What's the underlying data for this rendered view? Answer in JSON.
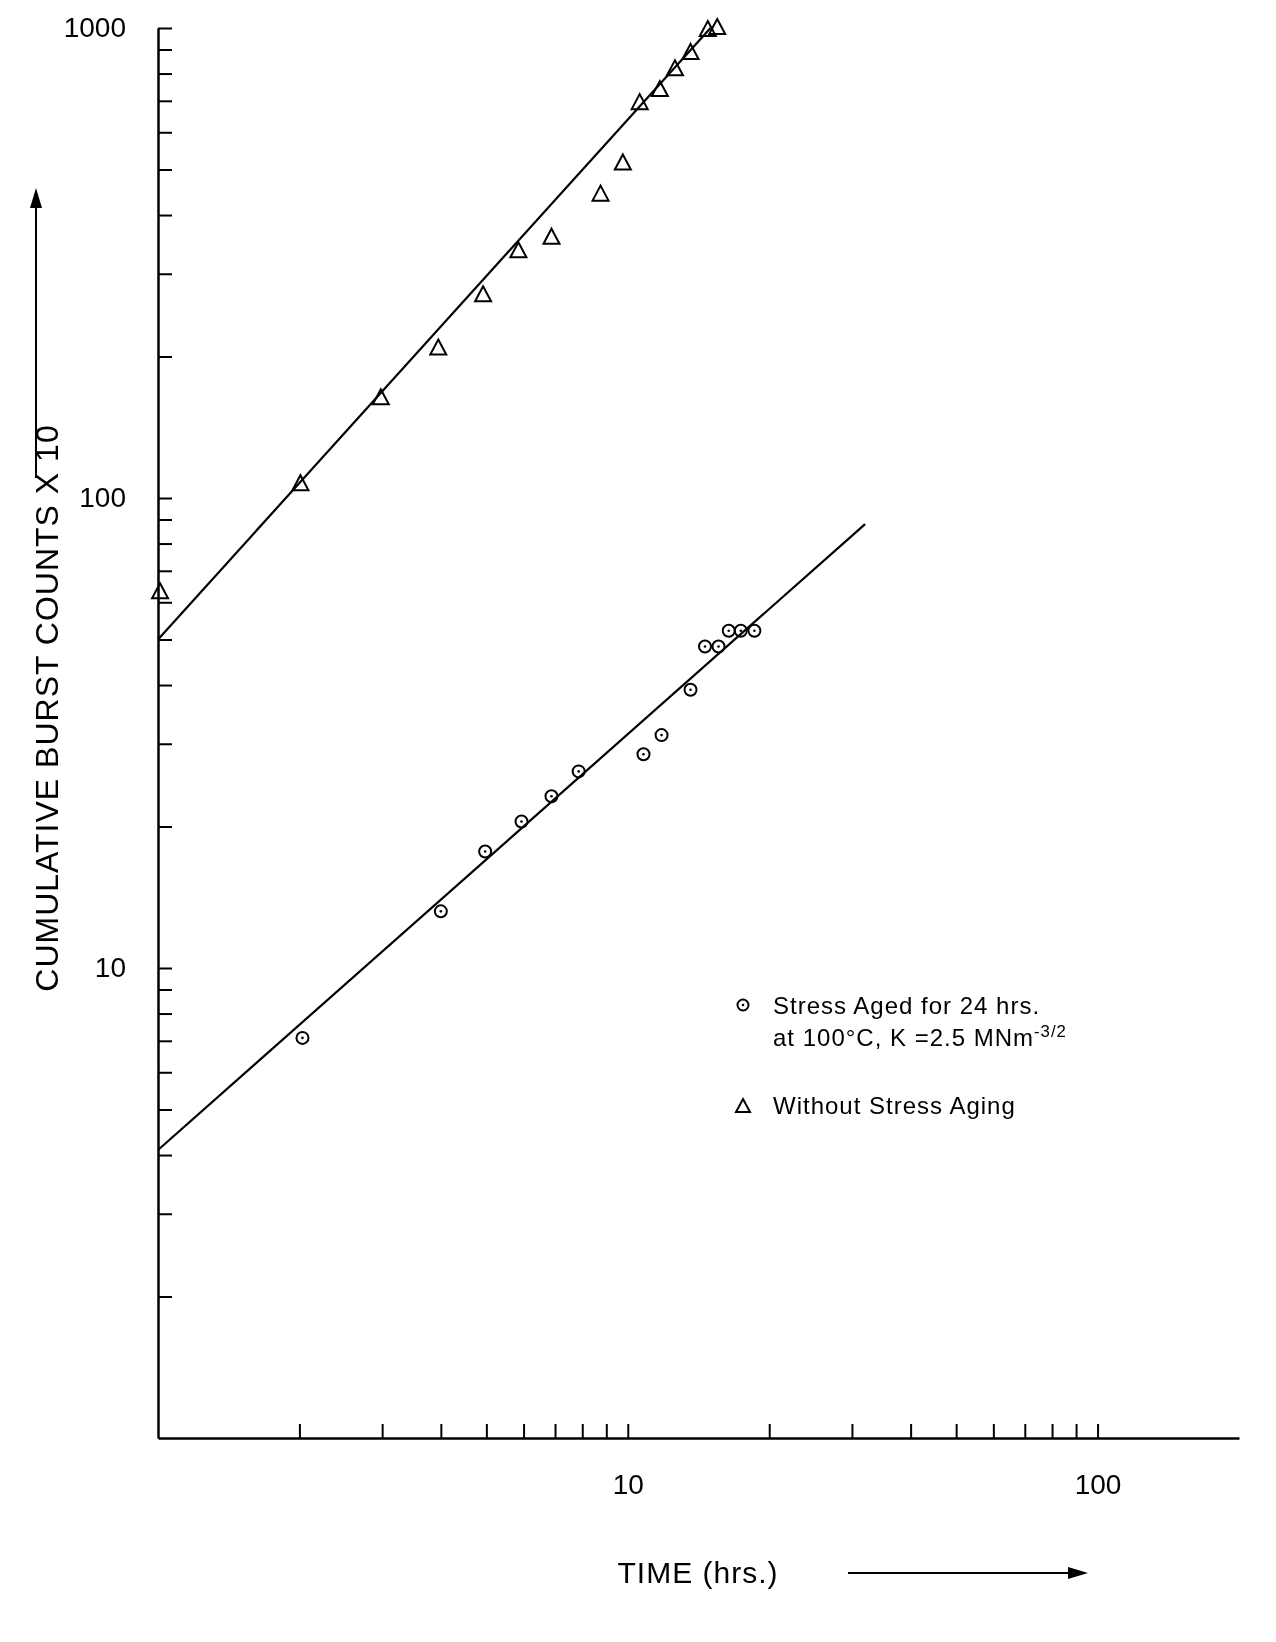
{
  "chart_data": {
    "type": "scatter",
    "xlabel": "TIME (hrs.)",
    "ylabel": "CUMULATIVE BURST COUNTS X 10",
    "log": "xy",
    "xlim": [
      1,
      200
    ],
    "ylim": [
      1,
      1000
    ],
    "xticks": [
      {
        "value": 2,
        "label": null
      },
      {
        "value": 3,
        "label": null
      },
      {
        "value": 4,
        "label": null
      },
      {
        "value": 5,
        "label": null
      },
      {
        "value": 6,
        "label": null
      },
      {
        "value": 7,
        "label": null
      },
      {
        "value": 8,
        "label": null
      },
      {
        "value": 9,
        "label": null
      },
      10,
      {
        "value": 20,
        "label": null
      },
      {
        "value": 30,
        "label": null
      },
      {
        "value": 40,
        "label": null
      },
      {
        "value": 50,
        "label": null
      },
      {
        "value": 60,
        "label": null
      },
      {
        "value": 70,
        "label": null
      },
      {
        "value": 80,
        "label": null
      },
      {
        "value": 90,
        "label": null
      },
      100
    ],
    "yticks": [
      {
        "value": 2,
        "label": null
      },
      {
        "value": 3,
        "label": null
      },
      {
        "value": 4,
        "label": null
      },
      {
        "value": 5,
        "label": null
      },
      {
        "value": 6,
        "label": null
      },
      {
        "value": 7,
        "label": null
      },
      {
        "value": 8,
        "label": null
      },
      {
        "value": 9,
        "label": null
      },
      10,
      {
        "value": 20,
        "label": null
      },
      {
        "value": 30,
        "label": null
      },
      {
        "value": 40,
        "label": null
      },
      {
        "value": 50,
        "label": null
      },
      {
        "value": 60,
        "label": null
      },
      {
        "value": 70,
        "label": null
      },
      {
        "value": 80,
        "label": null
      },
      {
        "value": 90,
        "label": null
      },
      100,
      {
        "value": 200,
        "label": null
      },
      {
        "value": 300,
        "label": null
      },
      {
        "value": 400,
        "label": null
      },
      {
        "value": 500,
        "label": null
      },
      {
        "value": 600,
        "label": null
      },
      {
        "value": 700,
        "label": null
      },
      {
        "value": 800,
        "label": null
      },
      {
        "value": 900,
        "label": null
      },
      1000
    ],
    "legend": "right",
    "grid": false,
    "series": [
      {
        "name": "Stress Aged for 24 hrs. at 100°C, K =2.5 MNm$^{-3/2}$",
        "type": "scatter",
        "marker": "circle",
        "color": "#000000",
        "x": [
          2.03,
          4.0,
          4.97,
          5.94,
          6.88,
          7.86,
          10.8,
          11.8,
          13.6,
          14.6,
          15.6,
          16.4,
          17.4,
          18.6
        ],
        "values": [
          7.1,
          13.2,
          17.7,
          20.5,
          23.2,
          26.2,
          28.5,
          31.3,
          39.1,
          48.3,
          48.3,
          52.2,
          52.2,
          52.2
        ]
      },
      {
        "name": "Without Stress Aging",
        "type": "scatter",
        "marker": "triangle",
        "color": "#000000",
        "x": [
          1.01,
          2.01,
          2.98,
          3.95,
          4.92,
          5.85,
          6.88,
          8.75,
          9.76,
          10.6,
          11.7,
          12.6,
          13.6,
          14.8,
          15.5
        ],
        "values": [
          63,
          107,
          163,
          208,
          270,
          335,
          358,
          442,
          515,
          692,
          738,
          817,
          885,
          990,
          1000
        ]
      },
      {
        "type": "line",
        "color": "#000000",
        "x": [
          1,
          32
        ],
        "values": [
          4.1,
          88
        ]
      },
      {
        "type": "line",
        "color": "#000000",
        "x": [
          1,
          15
        ],
        "values": [
          50,
          1000
        ]
      }
    ]
  }
}
